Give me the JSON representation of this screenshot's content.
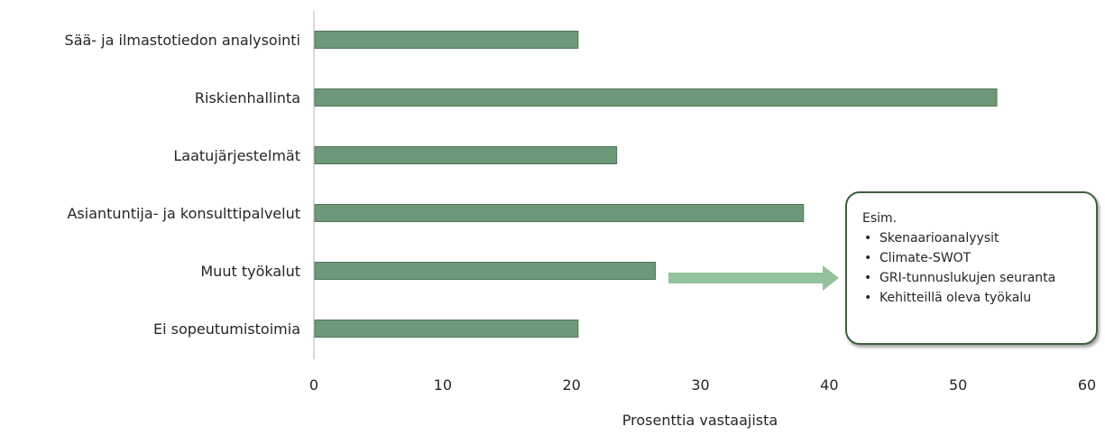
{
  "chart_data": {
    "type": "bar",
    "orientation": "horizontal",
    "categories": [
      "Sää- ja ilmastotiedon analysointi",
      "Riskienhallinta",
      "Laatujärjestelmät",
      "Asiantuntija- ja konsulttipalvelut",
      "Muut työkalut",
      "Ei sopeutumistoimia"
    ],
    "values": [
      20.5,
      53,
      23.5,
      38,
      26.5,
      20.5
    ],
    "xlabel": "Prosenttia vastaajista",
    "ylabel": "",
    "xlim": [
      0,
      60
    ],
    "xticks": [
      0,
      10,
      20,
      30,
      40,
      50,
      60
    ],
    "grid": false,
    "legend": "none",
    "bar_color": "#6e9978",
    "bar_border_color": "#4f7558",
    "axis_color": "#d9d9d9"
  },
  "annotation": {
    "title": "Esim.",
    "items": [
      "Skenaarioanalyysit",
      "Climate-SWOT",
      "GRI-tunnuslukujen seuranta",
      "Kehitteillä oleva työkalu"
    ],
    "bullet": "•",
    "arrow_color": "#93c29d",
    "border_color": "#3f5d3f"
  }
}
